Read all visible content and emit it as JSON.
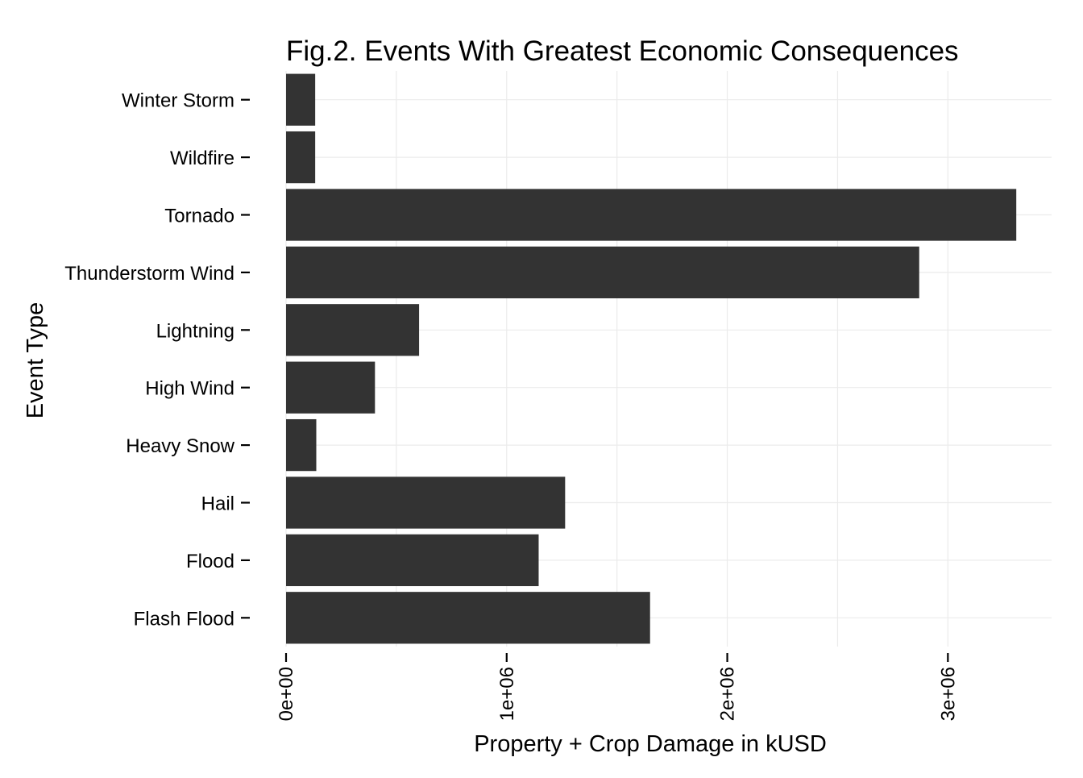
{
  "chart_data": {
    "type": "bar",
    "orientation": "horizontal",
    "title": "Fig.2. Events With Greatest Economic Consequences",
    "xlabel": "Property + Crop Damage in kUSD",
    "ylabel": "Event Type",
    "categories": [
      "Flash Flood",
      "Flood",
      "Hail",
      "Heavy Snow",
      "High Wind",
      "Lightning",
      "Thunderstorm Wind",
      "Tornado",
      "Wildfire",
      "Winter Storm"
    ],
    "values": [
      1650000,
      1145000,
      1265000,
      137000,
      403000,
      603000,
      2870000,
      3310000,
      132000,
      132000
    ],
    "xlim": [
      0,
      3470000
    ],
    "xticks": [
      0,
      1000000,
      2000000,
      3000000
    ],
    "xtick_labels": [
      "0e+00",
      "1e+06",
      "2e+06",
      "3e+06"
    ],
    "xtick_label_rotation": "vertical",
    "grid": true,
    "legend": "none",
    "bar_color": "#333333",
    "grid_color": "#ebebeb",
    "background_color": "#ffffff"
  }
}
